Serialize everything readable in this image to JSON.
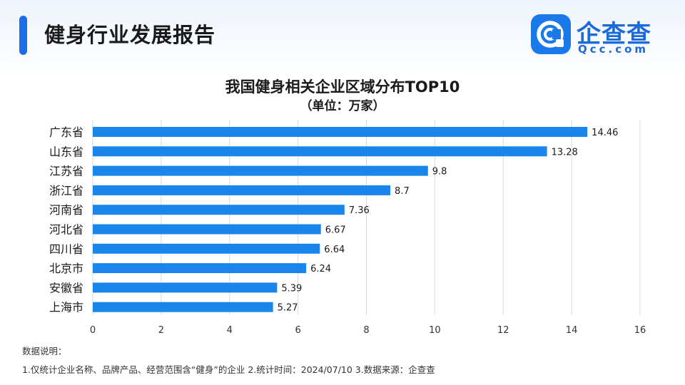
{
  "header": {
    "title": "健身行业发展报告"
  },
  "logo": {
    "name": "企查查",
    "sub": "Qcc.com",
    "icon": "qcc-logo-icon"
  },
  "chart_data": {
    "type": "bar",
    "orientation": "horizontal",
    "title": "我国健身相关企业区域分布TOP10",
    "subtitle": "（单位：万家）",
    "categories": [
      "广东省",
      "山东省",
      "江苏省",
      "浙江省",
      "河南省",
      "河北省",
      "四川省",
      "北京市",
      "安徽省",
      "上海市"
    ],
    "values": [
      14.46,
      13.28,
      9.8,
      8.7,
      7.36,
      6.67,
      6.64,
      6.24,
      5.39,
      5.27
    ],
    "value_labels": [
      "14.46",
      "13.28",
      "9.8",
      "8.7",
      "7.36",
      "6.67",
      "6.64",
      "6.24",
      "5.39",
      "5.27"
    ],
    "xlim": [
      0,
      16
    ],
    "xticks": [
      0,
      2,
      4,
      6,
      8,
      10,
      12,
      14,
      16
    ],
    "grid": "vertical",
    "bar_color": "#1a86ec"
  },
  "notes": {
    "label": "数据说明：",
    "text": "1.仅统计企业名称、品牌产品、经营范围含“健身”的企业   2.统计时间：2024/07/10   3.数据来源：企查查"
  }
}
